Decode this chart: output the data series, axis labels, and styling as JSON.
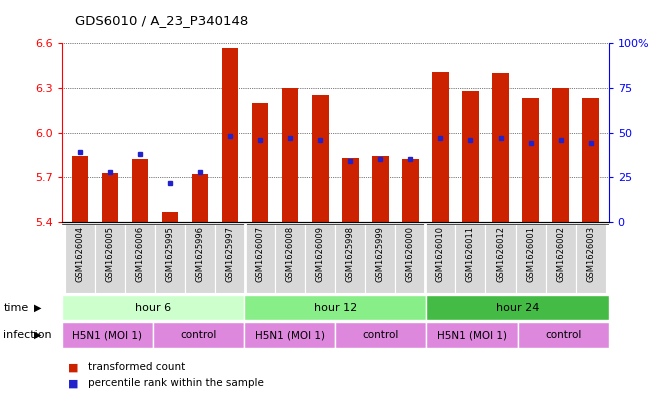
{
  "title": "GDS6010 / A_23_P340148",
  "samples": [
    "GSM1626004",
    "GSM1626005",
    "GSM1626006",
    "GSM1625995",
    "GSM1625996",
    "GSM1625997",
    "GSM1626007",
    "GSM1626008",
    "GSM1626009",
    "GSM1625998",
    "GSM1625999",
    "GSM1626000",
    "GSM1626010",
    "GSM1626011",
    "GSM1626012",
    "GSM1626001",
    "GSM1626002",
    "GSM1626003"
  ],
  "transformed_count": [
    5.84,
    5.73,
    5.82,
    5.47,
    5.72,
    6.57,
    6.2,
    6.3,
    6.25,
    5.83,
    5.84,
    5.82,
    6.41,
    6.28,
    6.4,
    6.23,
    6.3,
    6.23
  ],
  "percentile_rank": [
    39,
    28,
    38,
    22,
    28,
    48,
    46,
    47,
    46,
    34,
    35,
    35,
    47,
    46,
    47,
    44,
    46,
    44
  ],
  "ymin": 5.4,
  "ymax": 6.6,
  "yticks": [
    5.4,
    5.7,
    6.0,
    6.3,
    6.6
  ],
  "right_yticks": [
    0,
    25,
    50,
    75,
    100
  ],
  "right_ylabels": [
    "0",
    "25",
    "50",
    "75",
    "100%"
  ],
  "bar_color": "#cc2200",
  "dot_color": "#2222cc",
  "label_area_bg": "#d8d8d8",
  "time_groups": [
    {
      "label": "hour 6",
      "start": 0,
      "end": 6,
      "color": "#ccffcc"
    },
    {
      "label": "hour 12",
      "start": 6,
      "end": 12,
      "color": "#88ee88"
    },
    {
      "label": "hour 24",
      "start": 12,
      "end": 18,
      "color": "#44bb44"
    }
  ],
  "infection_groups": [
    {
      "label": "H5N1 (MOI 1)",
      "start": 0,
      "end": 3,
      "color": "#dd88dd"
    },
    {
      "label": "control",
      "start": 3,
      "end": 6,
      "color": "#dd88dd"
    },
    {
      "label": "H5N1 (MOI 1)",
      "start": 6,
      "end": 9,
      "color": "#dd88dd"
    },
    {
      "label": "control",
      "start": 9,
      "end": 12,
      "color": "#dd88dd"
    },
    {
      "label": "H5N1 (MOI 1)",
      "start": 12,
      "end": 15,
      "color": "#dd88dd"
    },
    {
      "label": "control",
      "start": 15,
      "end": 18,
      "color": "#dd88dd"
    }
  ],
  "legend_items": [
    {
      "color": "#cc2200",
      "label": "transformed count"
    },
    {
      "color": "#2222cc",
      "label": "percentile rank within the sample"
    }
  ],
  "fig_width": 6.51,
  "fig_height": 3.93,
  "dpi": 100
}
